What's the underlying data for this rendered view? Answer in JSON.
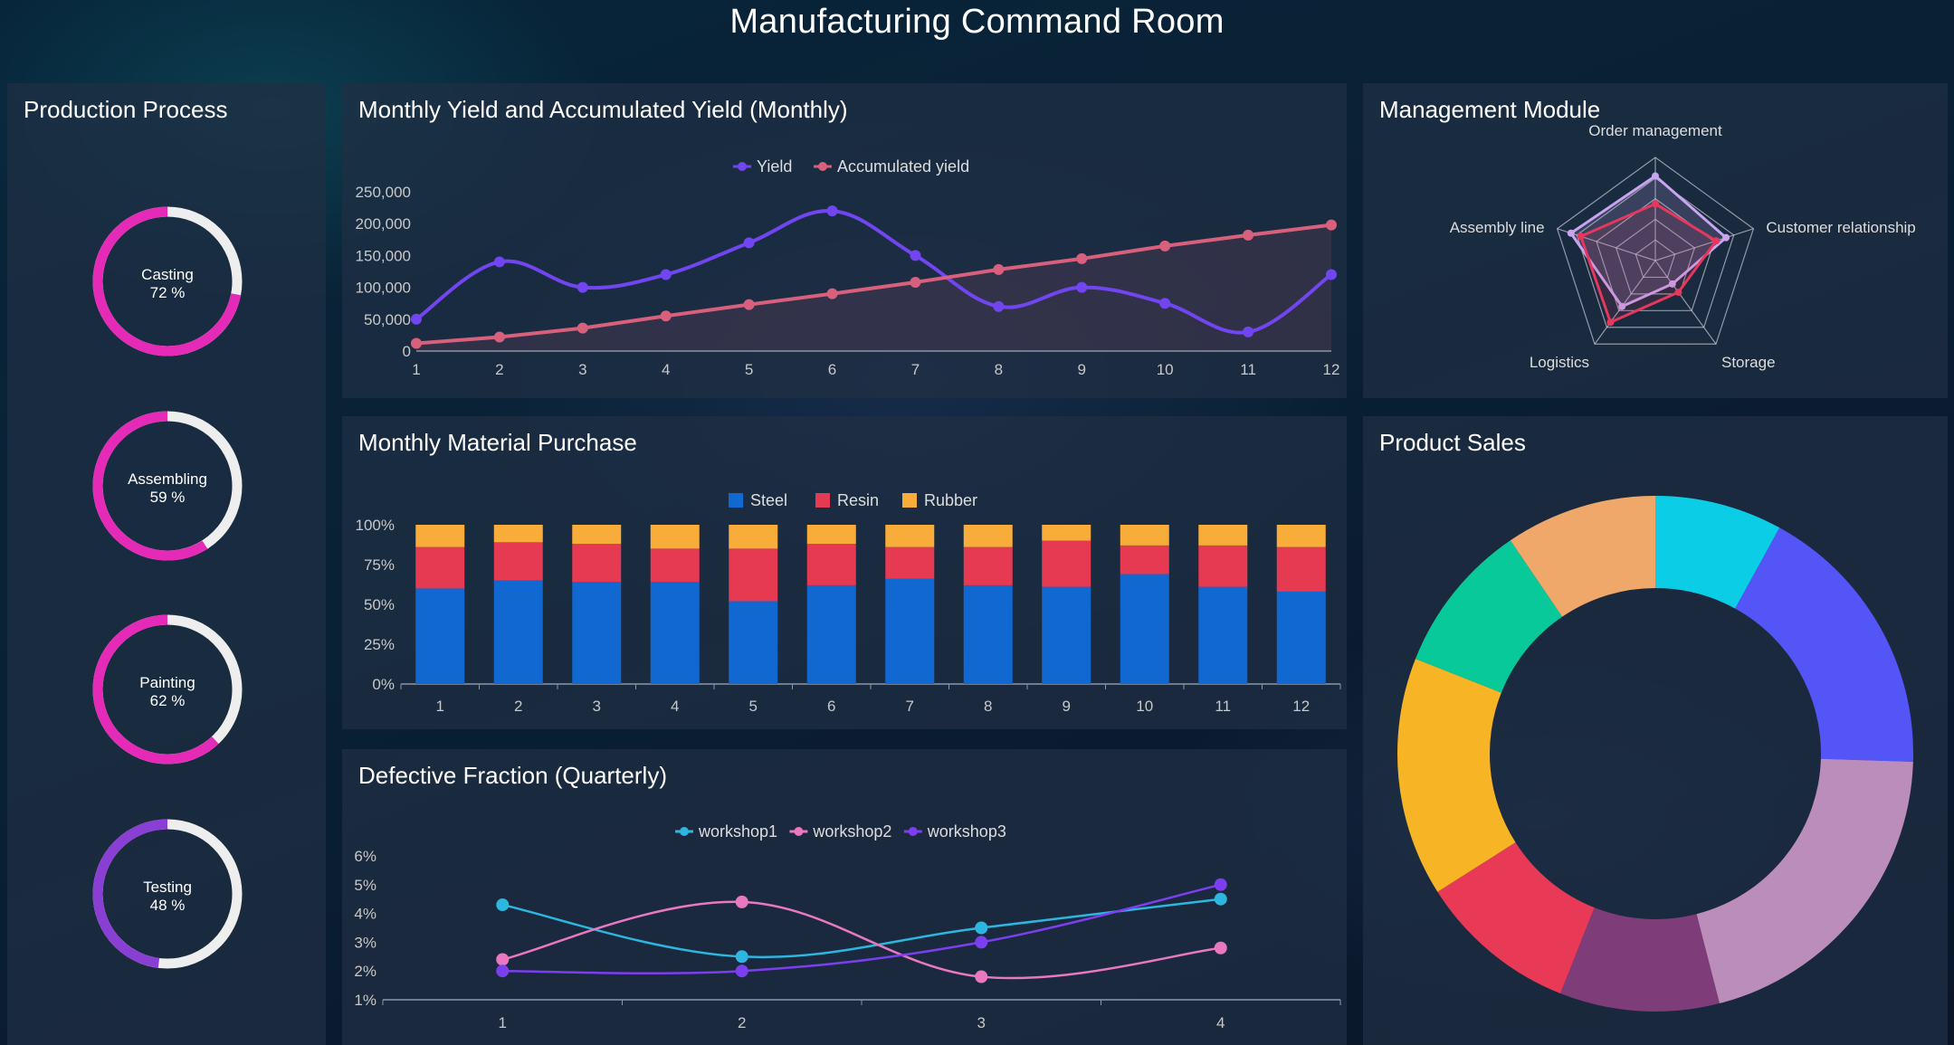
{
  "page_title": "Manufacturing Command Room",
  "panels": {
    "production": "Production Process",
    "yield": "Monthly Yield and Accumulated Yield (Monthly)",
    "management": "Management Module",
    "material": "Monthly Material Purchase",
    "sales": "Product Sales",
    "defective": "Defective Fraction (Quarterly)"
  },
  "colors": {
    "gauge_fill": "#e62ab8",
    "gauge_testing": "#8a3fd4",
    "gauge_track": "#eeeeee"
  },
  "chart_data": [
    {
      "id": "production",
      "type": "gauge",
      "items": [
        {
          "name": "Casting",
          "value": 72,
          "label": "72 %"
        },
        {
          "name": "Assembling",
          "value": 59,
          "label": "59 %"
        },
        {
          "name": "Painting",
          "value": 62,
          "label": "62 %"
        },
        {
          "name": "Testing",
          "value": 48,
          "label": "48 %"
        }
      ]
    },
    {
      "id": "yield",
      "type": "line",
      "x": [
        "1",
        "2",
        "3",
        "4",
        "5",
        "6",
        "7",
        "8",
        "9",
        "10",
        "11",
        "12"
      ],
      "ylim": [
        0,
        250000
      ],
      "yticks": [
        "250,000",
        "200,000",
        "150,000",
        "100,000",
        "50,000",
        "0"
      ],
      "series": [
        {
          "name": "Yield",
          "color": "#7145f0",
          "values": [
            50000,
            140000,
            100000,
            120000,
            170000,
            220000,
            150000,
            70000,
            100000,
            75000,
            30000,
            120000
          ]
        },
        {
          "name": "Accumulated yield",
          "color": "#d9607d",
          "values": [
            12000,
            22000,
            36000,
            55000,
            73000,
            90000,
            108000,
            128000,
            145000,
            165000,
            182000,
            198000
          ]
        }
      ]
    },
    {
      "id": "management",
      "type": "radar",
      "axes": [
        "Order management",
        "Customer relationship",
        "Storage",
        "Logistics",
        "Assembly line"
      ],
      "series": [
        {
          "color": "#c9a4f0",
          "values": [
            0.82,
            0.72,
            0.28,
            0.55,
            0.86
          ]
        },
        {
          "color": "#e6375c",
          "values": [
            0.55,
            0.62,
            0.38,
            0.74,
            0.76
          ]
        }
      ]
    },
    {
      "id": "material",
      "type": "bar",
      "stacked": "percent",
      "categories": [
        "1",
        "2",
        "3",
        "4",
        "5",
        "6",
        "7",
        "8",
        "9",
        "10",
        "11",
        "12"
      ],
      "yticks": [
        "100%",
        "75%",
        "50%",
        "25%",
        "0%"
      ],
      "series": [
        {
          "name": "Steel",
          "color": "#1268d1",
          "values": [
            60,
            65,
            64,
            64,
            52,
            62,
            66,
            62,
            61,
            69,
            61,
            58
          ]
        },
        {
          "name": "Resin",
          "color": "#e63a53",
          "values": [
            26,
            24,
            24,
            21,
            33,
            26,
            20,
            24,
            29,
            18,
            26,
            28
          ]
        },
        {
          "name": "Rubber",
          "color": "#f8ac3a",
          "values": [
            14,
            11,
            12,
            15,
            15,
            12,
            14,
            14,
            10,
            13,
            13,
            14
          ]
        }
      ]
    },
    {
      "id": "defective",
      "type": "line",
      "x": [
        "1",
        "2",
        "3",
        "4"
      ],
      "ylim": [
        1,
        6
      ],
      "yticks": [
        "6%",
        "5%",
        "4%",
        "3%",
        "2%",
        "1%"
      ],
      "series": [
        {
          "name": "workshop1",
          "color": "#2cb6e0",
          "values": [
            4.3,
            2.5,
            3.5,
            4.5
          ]
        },
        {
          "name": "workshop2",
          "color": "#e878c0",
          "values": [
            2.4,
            4.4,
            1.8,
            2.8
          ]
        },
        {
          "name": "workshop3",
          "color": "#7c3ff0",
          "values": [
            2.0,
            2.0,
            3.0,
            5.0
          ]
        }
      ]
    },
    {
      "id": "sales",
      "type": "pie",
      "donut": true,
      "slices": [
        {
          "value": 8,
          "color": "#0ccde6"
        },
        {
          "value": 17.5,
          "color": "#5355f7"
        },
        {
          "value": 20.5,
          "color": "#bb8dbb"
        },
        {
          "value": 10,
          "color": "#7e3c78"
        },
        {
          "value": 10,
          "color": "#e83a56"
        },
        {
          "value": 15,
          "color": "#f7b424"
        },
        {
          "value": 9.5,
          "color": "#08c999"
        },
        {
          "value": 9.5,
          "color": "#efa869"
        }
      ]
    }
  ]
}
